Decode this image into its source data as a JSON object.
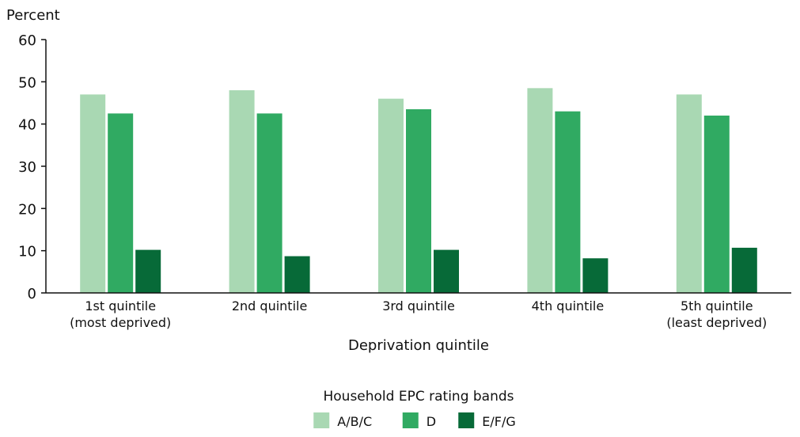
{
  "chart_data": {
    "type": "bar",
    "ylabel": "Percent",
    "xlabel": "Deprivation quintile",
    "ylim": [
      0,
      60
    ],
    "yticks": [
      0,
      10,
      20,
      30,
      40,
      50,
      60
    ],
    "grid": false,
    "categories": [
      [
        "1st quintile",
        "(most deprived)"
      ],
      [
        "2nd quintile"
      ],
      [
        "3rd quintile"
      ],
      [
        "4th quintile"
      ],
      [
        "5th quintile",
        "(least deprived)"
      ]
    ],
    "series": [
      {
        "name": "A/B/C",
        "color": "#a9d8b3",
        "values": [
          47,
          48,
          46,
          48.5,
          47
        ]
      },
      {
        "name": "D",
        "color": "#30aa62",
        "values": [
          42.5,
          42.5,
          43.5,
          43,
          42
        ]
      },
      {
        "name": "E/F/G",
        "color": "#076a38",
        "values": [
          10.2,
          8.7,
          10.2,
          8.2,
          10.7
        ]
      }
    ],
    "legend": {
      "title": "Household EPC rating bands",
      "position": "bottom-center"
    }
  }
}
